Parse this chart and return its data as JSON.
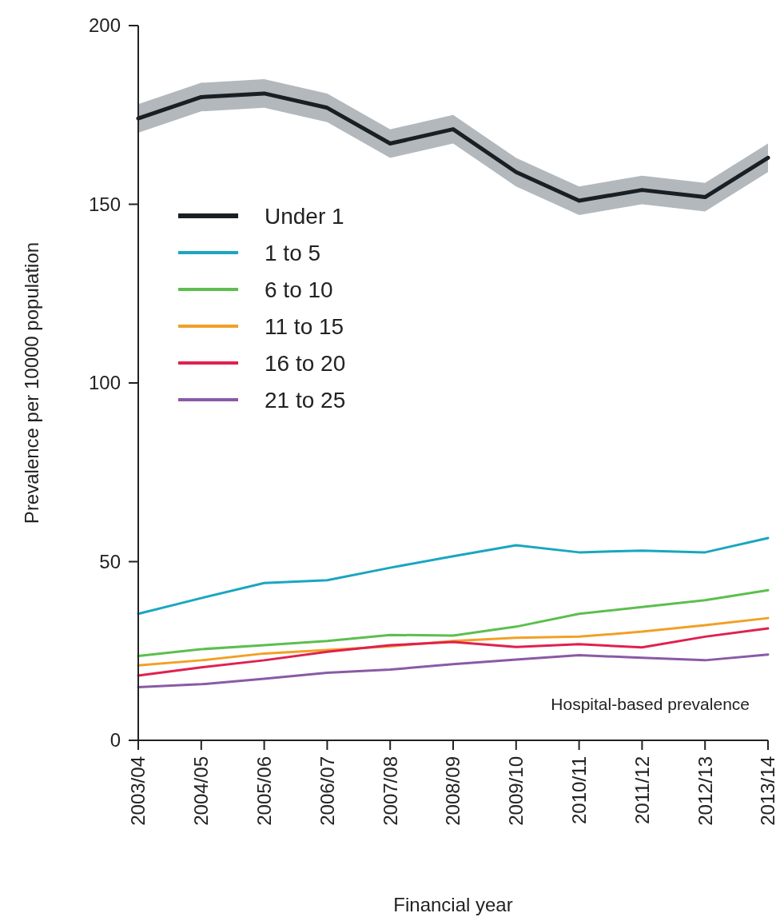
{
  "chart_data": {
    "type": "line",
    "xlabel": "Financial year",
    "ylabel": "Prevalence per 10000 population",
    "categories": [
      "2003/04",
      "2004/05",
      "2005/06",
      "2006/07",
      "2007/08",
      "2008/09",
      "2009/10",
      "2010/11",
      "2011/12",
      "2012/13",
      "2013/14"
    ],
    "series": [
      {
        "name": "Under 1",
        "color": "#1a1f24",
        "values": [
          174,
          180,
          181,
          177,
          167,
          171,
          159,
          151,
          154,
          152,
          163
        ],
        "lower": [
          170,
          176,
          177,
          173,
          163,
          167,
          155,
          147,
          150,
          148,
          159
        ],
        "upper": [
          178,
          184,
          185,
          181,
          171,
          175,
          163,
          155,
          158,
          156,
          167
        ]
      },
      {
        "name": "1 to 5",
        "color": "#1aa6c0",
        "values": [
          35.4,
          39.8,
          44,
          44.8,
          48.3,
          51.5,
          54.6,
          52.6,
          53.1,
          52.6,
          56.6
        ]
      },
      {
        "name": "6 to 10",
        "color": "#5cbf4e",
        "values": [
          23.6,
          25.5,
          26.6,
          27.8,
          29.5,
          29.3,
          31.8,
          35.4,
          37.3,
          39.2,
          42
        ]
      },
      {
        "name": "11 to 15",
        "color": "#f2a026",
        "values": [
          21,
          22.4,
          24.3,
          25.3,
          26.3,
          27.8,
          28.7,
          29,
          30.4,
          32.2,
          34.2
        ]
      },
      {
        "name": "16 to 20",
        "color": "#e0204f",
        "values": [
          18.1,
          20.4,
          22.4,
          24.8,
          26.6,
          27.5,
          26.1,
          26.9,
          26,
          29,
          31.3
        ]
      },
      {
        "name": "21 to 25",
        "color": "#8a5aa6",
        "values": [
          14.9,
          15.7,
          17.2,
          18.9,
          19.8,
          21.3,
          22.6,
          23.8,
          23.1,
          22.4,
          24
        ]
      }
    ],
    "ylim": [
      0,
      200
    ],
    "yticks": [
      0,
      50,
      100,
      150,
      200
    ],
    "legend": "top left",
    "annotations": [
      "Hospital-based prevalence"
    ]
  }
}
